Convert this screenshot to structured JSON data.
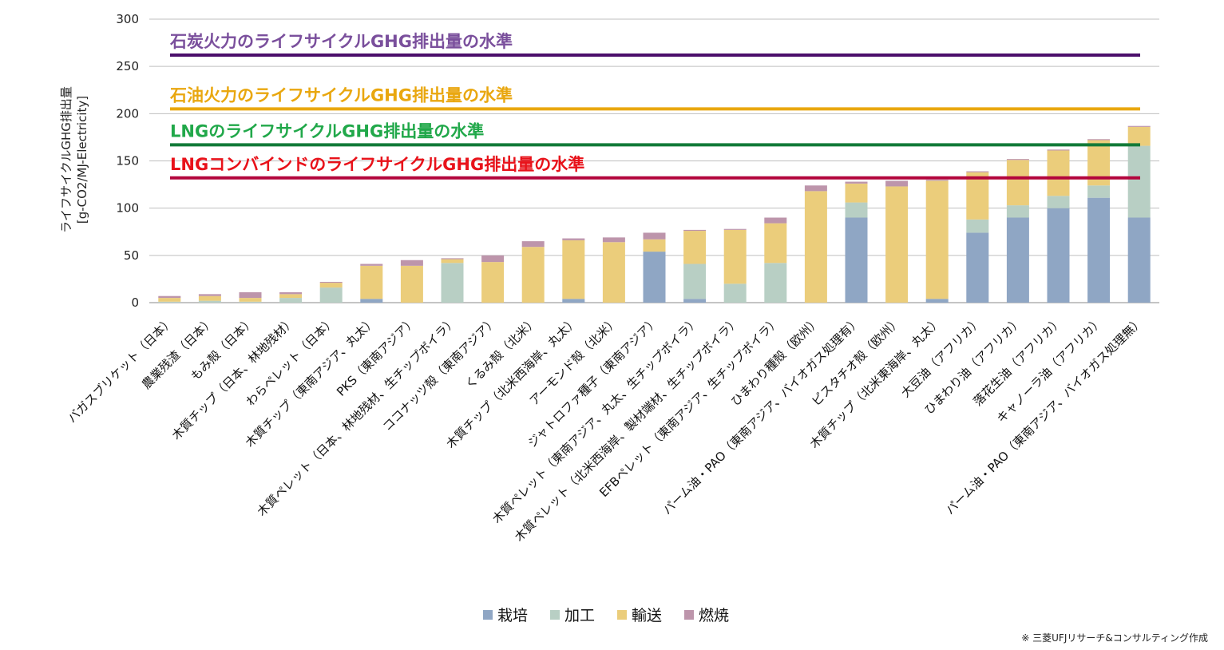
{
  "chart_data": {
    "type": "bar",
    "stacked": true,
    "ylabel_line1": "ライフサイクルGHG排出量",
    "ylabel_line2": "[g-CO2/MJ-Electricity]",
    "ylim": [
      0,
      300
    ],
    "yticks": [
      0,
      50,
      100,
      150,
      200,
      250,
      300
    ],
    "grid": true,
    "legend_position": "bottom",
    "categories": [
      "バガスブリケット（日本）",
      "農業残渣（日本）",
      "もみ殻（日本）",
      "木質チップ（日本、林地残材）",
      "わらペレット（日本）",
      "木質チップ（東南アジア、丸太）",
      "PKS（東南アジア）",
      "木質ペレット（日本、林地残材、生チップボイラ）",
      "ココナッツ殻（東南アジア）",
      "くるみ殻（北米）",
      "木質チップ（北米西海岸、丸太）",
      "アーモンド殻（北米）",
      "ジャトロファ種子（東南アジア）",
      "木質ペレット（東南アジア、丸太、生チップボイラ）",
      "木質ペレット（北米西海岸、製材端材、生チップボイラ）",
      "EFBペレット（東南アジア、生チップボイラ）",
      "ひまわり種殻（欧州）",
      "パーム油・PAO（東南アジア、バイオガス処理有）",
      "ピスタチオ殻（欧州）",
      "木質チップ（北米東海岸、丸太）",
      "大豆油（アフリカ）",
      "ひまわり油（アフリカ）",
      "落花生油（アフリカ）",
      "キャノーラ油（アフリカ）",
      "パーム油・PAO（東南アジア、バイオガス処理無）"
    ],
    "series": [
      {
        "name": "栽培",
        "color": "#8fa6c4",
        "values": [
          0,
          0,
          0,
          0,
          0,
          4,
          0,
          0,
          0,
          0,
          4,
          0,
          54,
          4,
          0,
          0,
          0,
          90,
          0,
          4,
          74,
          90,
          100,
          111,
          90
        ]
      },
      {
        "name": "加工",
        "color": "#b8cfc4",
        "values": [
          1,
          2,
          1,
          5,
          16,
          0,
          0,
          42,
          0,
          0,
          0,
          0,
          0,
          37,
          20,
          42,
          0,
          16,
          0,
          0,
          14,
          13,
          13,
          13,
          76
        ]
      },
      {
        "name": "輸送",
        "color": "#ebcd7b",
        "values": [
          4,
          5,
          4,
          4,
          5,
          35,
          39,
          4,
          43,
          59,
          62,
          64,
          13,
          35,
          57,
          42,
          118,
          20,
          123,
          125,
          50,
          48,
          48,
          48,
          20
        ]
      },
      {
        "name": "燃焼",
        "color": "#bd95ab",
        "values": [
          2,
          2,
          6,
          2,
          1,
          2,
          6,
          1,
          7,
          6,
          2,
          5,
          7,
          1,
          1,
          6,
          6,
          2,
          6,
          1,
          1,
          1,
          1,
          1,
          1
        ]
      }
    ],
    "reference_lines": [
      {
        "label": "石炭火力のライフサイクルGHG排出量の水準",
        "value": 262,
        "color": "#4b0f6b",
        "text_color": "#7a4f9c"
      },
      {
        "label": "石油火力のライフサイクルGHG排出量の水準",
        "value": 205,
        "color": "#e9a70f",
        "text_color": "#e9a70f"
      },
      {
        "label": "LNGのライフサイクルGHG排出量の水準",
        "value": 167,
        "color": "#127a38",
        "text_color": "#21a84a"
      },
      {
        "label": "LNGコンバインドのライフサイクルGHG排出量の水準",
        "value": 132,
        "color": "#b3063d",
        "text_color": "#e8121a"
      }
    ]
  },
  "credit": "※ 三菱UFJリサーチ&コンサルティング作成"
}
